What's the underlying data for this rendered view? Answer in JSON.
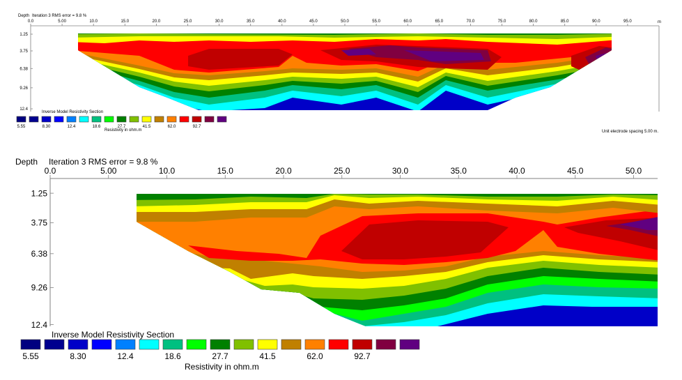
{
  "palette": [
    "#000080",
    "#00008f",
    "#0000c8",
    "#0000ff",
    "#0080ff",
    "#00ffff",
    "#00c080",
    "#00ff00",
    "#008000",
    "#80c000",
    "#ffff00",
    "#c08000",
    "#ff8000",
    "#ff0000",
    "#c00000",
    "#800040",
    "#600080"
  ],
  "chart_data": [
    {
      "type": "heatmap",
      "title": "Inverse Model Resistivity Section",
      "iteration_text": "Iteration 3 RMS error = 9.8 %",
      "ylabel": "Depth",
      "colorbar_label": "Resistivity in ohm.m",
      "x_ticks": [
        "0.0",
        "5.00",
        "10.0",
        "15.0",
        "20.0",
        "25.0",
        "30.0",
        "35.0",
        "40.0",
        "45.0",
        "50.0",
        "55.0",
        "60.0",
        "65.0",
        "70.0",
        "75.0",
        "80.0",
        "85.0",
        "90.0",
        "95.0"
      ],
      "x_unit": "m",
      "y_ticks": [
        "1.25",
        "3.75",
        "6.38",
        "9.26",
        "12.4"
      ],
      "colorbar_ticks": [
        "5.55",
        "8.30",
        "12.4",
        "18.6",
        "27.7",
        "41.5",
        "62.0",
        "92.7"
      ],
      "footer_note": "Unit electrode spacing 5.00 m.",
      "xlim": [
        0,
        97
      ],
      "ylim": [
        0,
        12.4
      ]
    },
    {
      "type": "heatmap",
      "title": "Inverse Model Resistivity Section",
      "iteration_text": "Iteration 3 RMS error = 9.8 %",
      "ylabel": "Depth",
      "colorbar_label": "Resistivity in ohm.m",
      "x_ticks": [
        "0.0",
        "5.00",
        "10.0",
        "15.0",
        "20.0",
        "25.0",
        "30.0",
        "35.0",
        "40.0",
        "45.0",
        "50.0"
      ],
      "y_ticks": [
        "1.25",
        "3.75",
        "6.38",
        "9.26",
        "12.4"
      ],
      "colorbar_ticks": [
        "5.55",
        "8.30",
        "12.4",
        "18.6",
        "27.7",
        "41.5",
        "62.0",
        "92.7"
      ],
      "xlim": [
        0,
        52.5
      ],
      "ylim": [
        0,
        12.4
      ]
    }
  ]
}
